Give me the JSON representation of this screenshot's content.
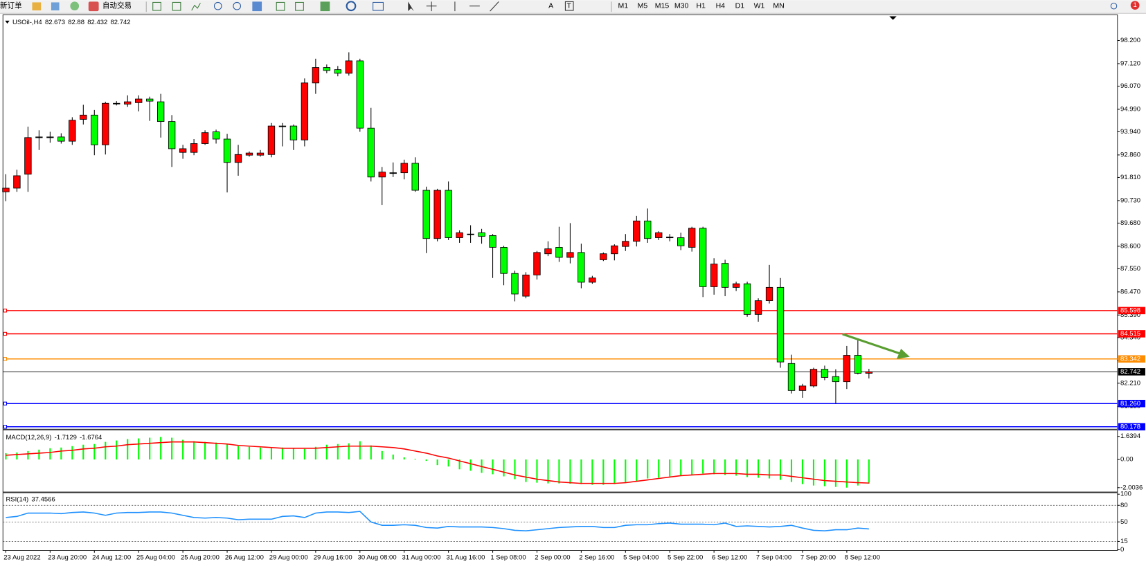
{
  "toolbar": {
    "items": [
      "新订单",
      "自动交易"
    ],
    "glyphs": [
      "A",
      "T"
    ],
    "timeframes": [
      "M1",
      "M5",
      "M15",
      "M30",
      "H1",
      "H4",
      "D1",
      "W1",
      "MN"
    ],
    "notifications": 1
  },
  "chart_data": [
    {
      "type": "candlestick",
      "title": "USOil-,H4",
      "categories": [
        "23 Aug 2022",
        null,
        null,
        null,
        "23 Aug 20:00",
        null,
        null,
        null,
        "24 Aug 12:00",
        null,
        null,
        null,
        "25 Aug 04:00",
        null,
        null,
        null,
        "25 Aug 20:00",
        null,
        null,
        null,
        "26 Aug 12:00",
        null,
        null,
        null,
        "29 Aug 00:00",
        null,
        null,
        null,
        "29 Aug 16:00",
        null,
        null,
        null,
        "30 Aug 08:00",
        null,
        null,
        null,
        "31 Aug 00:00",
        null,
        null,
        null,
        "31 Aug 16:00",
        null,
        null,
        null,
        "1 Sep 08:00",
        null,
        null,
        null,
        "2 Sep 00:00",
        null,
        null,
        null,
        "2 Sep 16:00",
        null,
        null,
        null,
        "5 Sep 04:00",
        null,
        null,
        null,
        "5 Sep 22:00",
        null,
        null,
        null,
        "6 Sep 12:00",
        null,
        null,
        null,
        "7 Sep 04:00",
        null,
        null,
        null,
        "7 Sep 20:00",
        null,
        null,
        null,
        "8 Sep 12:00",
        null,
        null
      ],
      "open": [
        91.14,
        91.31,
        91.96,
        93.7,
        93.7,
        93.7,
        93.5,
        94.52,
        94.72,
        93.33,
        95.27,
        95.23,
        95.3,
        95.47,
        95.34,
        94.42,
        92.98,
        92.98,
        93.39,
        93.94,
        93.6,
        92.51,
        92.85,
        92.85,
        92.88,
        94.21,
        94.21,
        93.56,
        96.22,
        96.94,
        96.84,
        96.67,
        97.25,
        94.11,
        91.83,
        92.03,
        92.03,
        92.47,
        91.21,
        88.96,
        91.21,
        89.0,
        89.17,
        89.23,
        89.1,
        88.55,
        87.33,
        86.27,
        87.26,
        88.25,
        88.55,
        88.08,
        88.31,
        86.92,
        87.97,
        88.25,
        88.59,
        88.83,
        89.78,
        89.0,
        89.03,
        89.0,
        88.55,
        89.44,
        86.71,
        87.8,
        86.68,
        86.85,
        85.42,
        86.06,
        86.68,
        83.13,
        81.87,
        82.08,
        82.86,
        82.52,
        82.28,
        83.51,
        82.673
      ],
      "high": [
        91.96,
        92.17,
        94.18,
        94.01,
        93.94,
        93.87,
        94.62,
        95.2,
        94.96,
        95.34,
        95.37,
        95.64,
        95.64,
        95.58,
        95.71,
        94.72,
        93.33,
        93.6,
        94.01,
        94.04,
        93.84,
        93.33,
        93.02,
        93.09,
        94.35,
        94.35,
        94.28,
        96.43,
        97.35,
        97.08,
        97.01,
        97.65,
        97.35,
        95.06,
        92.3,
        92.51,
        92.64,
        92.75,
        91.38,
        91.28,
        91.62,
        89.34,
        89.58,
        89.41,
        89.17,
        88.62,
        87.46,
        87.39,
        88.38,
        88.83,
        89.51,
        89.68,
        88.72,
        87.22,
        88.31,
        88.69,
        89.17,
        90.02,
        90.36,
        89.3,
        89.17,
        89.23,
        89.51,
        89.51,
        88.04,
        87.97,
        86.95,
        86.95,
        86.17,
        87.73,
        87.12,
        83.54,
        82.18,
        82.93,
        83.03,
        82.86,
        83.95,
        84.22,
        82.88
      ],
      "low": [
        90.7,
        91.14,
        91.14,
        93.09,
        93.43,
        93.39,
        93.33,
        94.28,
        92.85,
        92.88,
        95.17,
        95.1,
        94.89,
        94.45,
        93.67,
        92.3,
        92.68,
        92.85,
        93.33,
        93.39,
        91.11,
        91.89,
        92.78,
        92.78,
        92.75,
        93.26,
        93.09,
        93.26,
        95.71,
        96.67,
        96.53,
        96.56,
        93.94,
        91.62,
        90.53,
        91.83,
        91.72,
        91.14,
        88.28,
        88.83,
        88.89,
        88.76,
        88.76,
        88.72,
        87.12,
        86.78,
        86.03,
        86.17,
        87.05,
        88.14,
        87.87,
        87.8,
        86.64,
        86.85,
        87.91,
        87.94,
        88.38,
        88.59,
        88.76,
        88.89,
        88.83,
        88.42,
        88.35,
        86.23,
        86.34,
        86.27,
        86.51,
        85.31,
        85.08,
        85.93,
        82.93,
        81.73,
        81.53,
        82.01,
        82.35,
        81.26,
        81.94,
        82.62,
        82.432
      ],
      "close": [
        91.31,
        91.89,
        93.67,
        93.7,
        93.7,
        93.5,
        94.48,
        94.72,
        93.33,
        95.27,
        95.27,
        95.34,
        95.47,
        95.37,
        94.42,
        93.15,
        93.15,
        93.39,
        93.9,
        93.6,
        92.51,
        92.88,
        92.95,
        92.95,
        94.21,
        94.21,
        93.56,
        96.22,
        96.94,
        96.8,
        96.67,
        97.25,
        94.11,
        91.83,
        92.06,
        92.03,
        92.47,
        91.21,
        88.96,
        91.21,
        89.0,
        89.23,
        89.17,
        89.06,
        88.55,
        87.33,
        86.37,
        87.26,
        88.31,
        88.48,
        88.08,
        88.31,
        86.92,
        87.12,
        88.25,
        88.62,
        88.83,
        89.78,
        88.96,
        89.23,
        89.03,
        88.62,
        89.44,
        86.71,
        87.77,
        86.68,
        86.85,
        85.42,
        86.06,
        86.68,
        83.2,
        81.87,
        82.08,
        82.86,
        82.48,
        82.28,
        83.51,
        82.67,
        82.742
      ],
      "up_color": "#ff0000",
      "down_color": "#00ff00",
      "ylim": [
        80.1,
        99.33
      ],
      "yticks": [
        {
          "value": 98.2,
          "label": "98.200"
        },
        {
          "value": 97.12,
          "label": "97.120"
        },
        {
          "value": 96.07,
          "label": "96.070"
        },
        {
          "value": 94.99,
          "label": "94.990"
        },
        {
          "value": 93.94,
          "label": "93.940"
        },
        {
          "value": 92.86,
          "label": "92.860"
        },
        {
          "value": 91.81,
          "label": "91.810"
        },
        {
          "value": 90.73,
          "label": "90.730"
        },
        {
          "value": 89.68,
          "label": "89.680"
        },
        {
          "value": 88.6,
          "label": "88.600"
        },
        {
          "value": 87.55,
          "label": "87.550"
        },
        {
          "value": 86.47,
          "label": "86.470"
        },
        {
          "value": 85.39,
          "label": "85.390"
        },
        {
          "value": 84.34,
          "label": "84.340"
        },
        {
          "value": 83.26,
          "label": "83.260"
        },
        {
          "value": 82.21,
          "label": "82.210"
        },
        {
          "value": 81.13,
          "label": "81.130"
        }
      ],
      "hlines": [
        {
          "value": 85.598,
          "color": "#ff0000"
        },
        {
          "value": 84.515,
          "color": "#ff0000"
        },
        {
          "value": 83.342,
          "color": "#ff8c00"
        },
        {
          "value": 81.26,
          "label": "81.260",
          "color": "#0000ff"
        },
        {
          "value": 80.178,
          "color": "#0000ff"
        }
      ]
    },
    {
      "type": "macd",
      "title": "MACD(12,26,9)",
      "values": [
        0.45,
        0.5,
        0.6,
        0.7,
        0.8,
        0.85,
        0.95,
        1.05,
        1.1,
        1.25,
        1.35,
        1.45,
        1.5,
        1.55,
        1.6,
        1.55,
        1.4,
        1.3,
        1.25,
        1.2,
        1.1,
        0.95,
        0.9,
        0.85,
        0.8,
        0.85,
        0.8,
        0.75,
        0.9,
        1.05,
        1.1,
        1.15,
        1.3,
        1.0,
        0.6,
        0.35,
        0.15,
        0.05,
        -0.1,
        -0.4,
        -0.5,
        -0.7,
        -0.8,
        -0.95,
        -1.05,
        -1.2,
        -1.4,
        -1.6,
        -1.65,
        -1.7,
        -1.7,
        -1.72,
        -1.75,
        -1.8,
        -1.8,
        -1.75,
        -1.65,
        -1.55,
        -1.35,
        -1.3,
        -1.2,
        -1.15,
        -1.1,
        -1.0,
        -1.05,
        -1.1,
        -1.15,
        -1.25,
        -1.3,
        -1.35,
        -1.45,
        -1.6,
        -1.75,
        -1.85,
        -1.9,
        -1.95,
        -2.0,
        -1.85,
        -1.7129
      ],
      "signal": [
        0.3,
        0.35,
        0.4,
        0.45,
        0.5,
        0.6,
        0.65,
        0.75,
        0.8,
        0.9,
        0.95,
        1.05,
        1.1,
        1.15,
        1.2,
        1.25,
        1.25,
        1.25,
        1.2,
        1.15,
        1.1,
        1.0,
        0.95,
        0.9,
        0.85,
        0.8,
        0.8,
        0.8,
        0.8,
        0.85,
        0.9,
        0.95,
        0.95,
        0.95,
        0.9,
        0.85,
        0.75,
        0.6,
        0.45,
        0.25,
        0.1,
        -0.1,
        -0.3,
        -0.5,
        -0.7,
        -0.9,
        -1.1,
        -1.25,
        -1.4,
        -1.5,
        -1.6,
        -1.65,
        -1.7,
        -1.7,
        -1.7,
        -1.7,
        -1.65,
        -1.55,
        -1.45,
        -1.35,
        -1.25,
        -1.15,
        -1.1,
        -1.05,
        -1.0,
        -1.0,
        -1.0,
        -1.05,
        -1.05,
        -1.1,
        -1.1,
        -1.2,
        -1.3,
        -1.4,
        -1.5,
        -1.55,
        -1.6,
        -1.65,
        -1.6764
      ],
      "color": "#00ff00",
      "signal_color": "#ff0000",
      "ylim": [
        -2.26,
        2.0
      ],
      "yticks": [
        1.6394,
        {
          "value": 0,
          "label": "0.00"
        },
        -2.0036
      ]
    },
    {
      "type": "rsi",
      "title": "RSI(14)",
      "values": [
        58,
        60,
        66,
        66,
        66,
        65,
        67,
        68,
        66,
        62,
        66,
        67,
        67,
        68,
        68,
        66,
        62,
        58,
        57,
        58,
        57,
        54,
        55,
        55,
        55,
        60,
        61,
        58,
        66,
        68,
        68,
        67,
        69,
        50,
        44,
        44,
        45,
        44,
        40,
        39,
        42,
        41,
        41,
        41,
        40,
        38,
        35,
        34,
        36,
        38,
        40,
        41,
        42,
        42,
        40,
        40,
        44,
        45,
        45,
        47,
        48,
        46,
        46,
        46,
        45,
        48,
        42,
        43,
        42,
        41,
        42,
        44,
        39,
        35,
        34,
        36,
        36,
        39,
        37.4566
      ],
      "color": "#1e90ff",
      "grid": true,
      "ylim": [
        0,
        100
      ],
      "yticks": [
        0,
        15,
        50,
        80,
        100
      ]
    }
  ]
}
